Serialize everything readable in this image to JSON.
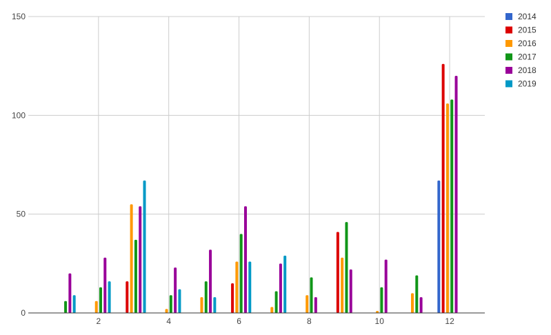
{
  "chart_data": {
    "type": "bar",
    "x": [
      1,
      2,
      3,
      4,
      5,
      6,
      7,
      8,
      9,
      10,
      11,
      12
    ],
    "xticks": [
      2,
      4,
      6,
      8,
      10,
      12
    ],
    "xlim": [
      0,
      13
    ],
    "ylim": [
      0,
      150
    ],
    "yticks": [
      0,
      50,
      100,
      150
    ],
    "grid": true,
    "legend": "right",
    "series": [
      {
        "name": "2014",
        "color": "#3366cc",
        "values": [
          0,
          0,
          0,
          0,
          0,
          0,
          0,
          0,
          0,
          0,
          0,
          67
        ]
      },
      {
        "name": "2015",
        "color": "#dc0000",
        "values": [
          0,
          0,
          16,
          0,
          0,
          15,
          0,
          0,
          41,
          0,
          0,
          126
        ]
      },
      {
        "name": "2016",
        "color": "#ff9900",
        "values": [
          0,
          6,
          55,
          2,
          8,
          26,
          3,
          9,
          28,
          1,
          10,
          106
        ]
      },
      {
        "name": "2017",
        "color": "#109618",
        "values": [
          6,
          13,
          37,
          9,
          16,
          40,
          11,
          18,
          46,
          13,
          19,
          108
        ]
      },
      {
        "name": "2018",
        "color": "#990099",
        "values": [
          20,
          28,
          54,
          23,
          32,
          54,
          25,
          8,
          22,
          27,
          8,
          120
        ]
      },
      {
        "name": "2019",
        "color": "#0099c6",
        "values": [
          9,
          16,
          67,
          12,
          8,
          26,
          29,
          0,
          0,
          0,
          0,
          0
        ]
      }
    ]
  }
}
